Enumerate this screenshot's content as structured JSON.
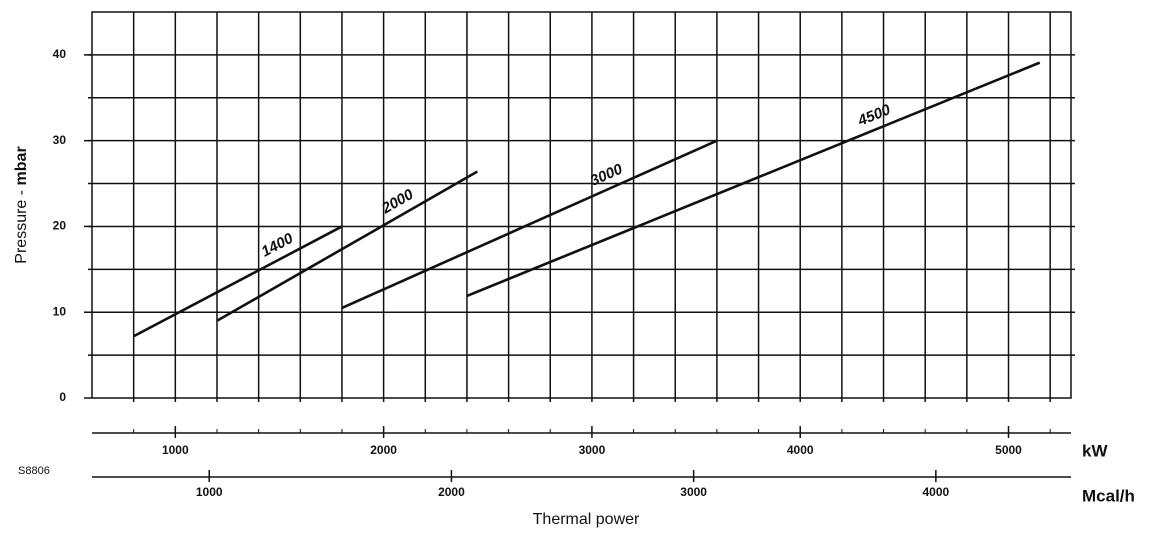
{
  "chart_data": {
    "type": "line",
    "code": "S8806",
    "ylabel": "Pressure -",
    "ylabel_unit": "mbar",
    "xlabel": "Thermal power",
    "xunit": "kW",
    "x2unit": "Mcal/h",
    "xlim": [
      600,
      5300
    ],
    "xticks": [
      1000,
      2000,
      3000,
      4000,
      5000
    ],
    "x2lim": [
      516,
      4558
    ],
    "x2ticks": [
      1000,
      2000,
      3000,
      4000
    ],
    "ylim": [
      0,
      45
    ],
    "yticks": [
      0,
      10,
      20,
      30,
      40
    ],
    "xgrid": [
      800,
      1000,
      1200,
      1400,
      1600,
      1800,
      2000,
      2200,
      2400,
      2600,
      2800,
      3000,
      3200,
      3400,
      3600,
      3800,
      4000,
      4200,
      4400,
      4600,
      4800,
      5000,
      5200
    ],
    "ygrid": [
      5,
      10,
      15,
      20,
      25,
      30,
      35,
      40
    ],
    "grid": true,
    "color": "#111111",
    "series": [
      {
        "name": "1400",
        "x": [
          800,
          1800
        ],
        "values": [
          7.2,
          20
        ]
      },
      {
        "name": "2000",
        "x": [
          1200,
          2450
        ],
        "values": [
          9,
          26.4
        ]
      },
      {
        "name": "3000",
        "x": [
          1800,
          3600
        ],
        "values": [
          10.5,
          30
        ]
      },
      {
        "name": "4500",
        "x": [
          2400,
          5150
        ],
        "values": [
          11.9,
          39.1
        ]
      }
    ]
  }
}
